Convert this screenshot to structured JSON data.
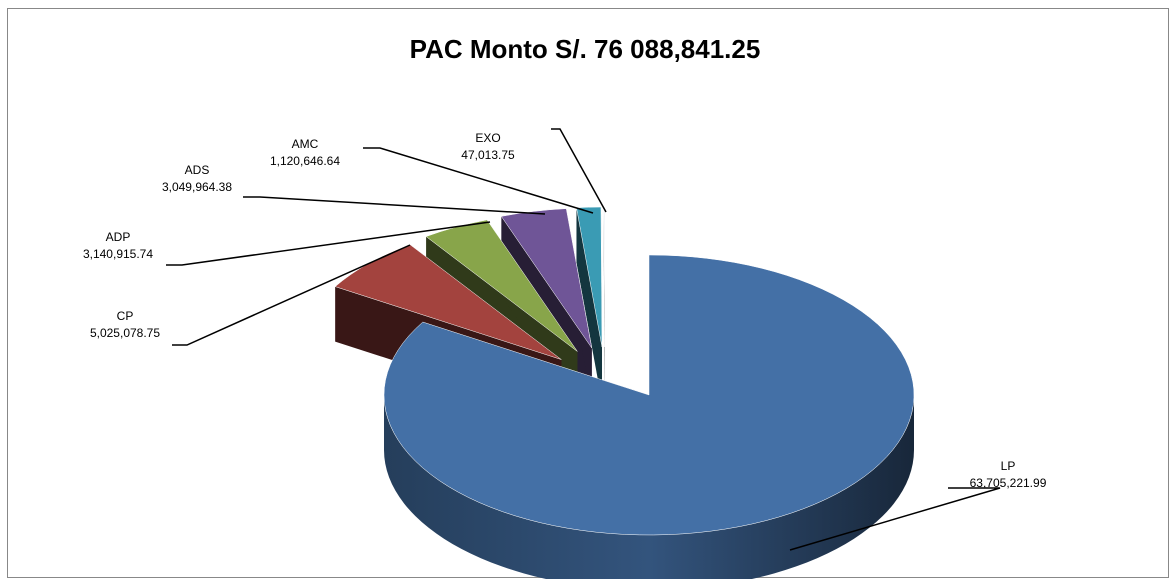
{
  "chart_data": {
    "type": "pie",
    "title": "PAC Monto S/. 76 088,841.25",
    "categories": [
      "LP",
      "CP",
      "ADP",
      "ADS",
      "AMC",
      "EXO"
    ],
    "values": [
      63705221.99,
      5025078.75,
      3140915.74,
      3049964.38,
      1120646.64,
      47013.75
    ],
    "value_labels": [
      "63,705,221.99",
      "5,025,078.75",
      "3,140,915.74",
      "3,049,964.38",
      "1,120,646.64",
      "47,013.75"
    ],
    "colors": [
      "#4470a6",
      "#a3433e",
      "#88a54a",
      "#6f5597",
      "#3a9bb4",
      "#dfe8f0"
    ]
  }
}
